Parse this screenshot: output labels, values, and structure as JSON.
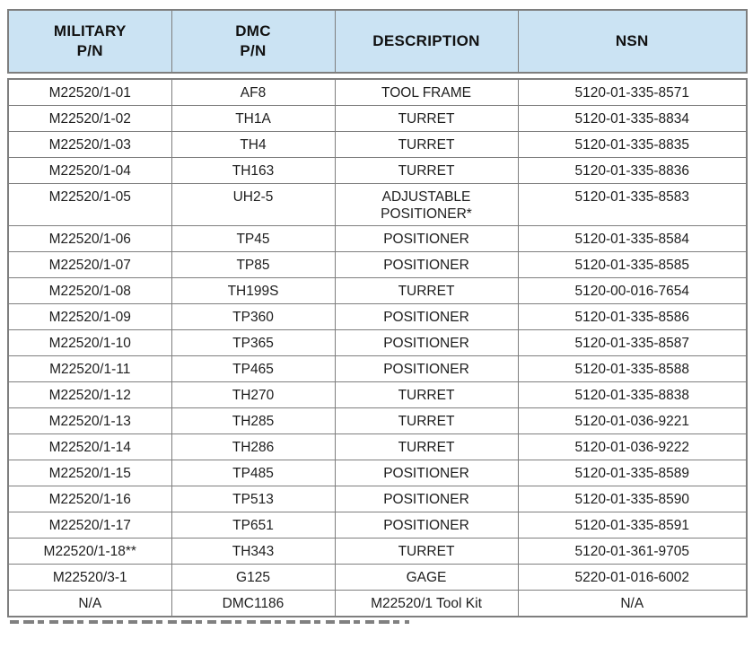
{
  "table": {
    "header": {
      "bg": "#cbe3f3",
      "columns": [
        "MILITARY\nP/N",
        "DMC\nP/N",
        "DESCRIPTION",
        "NSN"
      ]
    },
    "column_keys": [
      "military_pn",
      "dmc_pn",
      "description",
      "nsn"
    ],
    "rows": [
      {
        "military_pn": "M22520/1-01",
        "dmc_pn": "AF8",
        "description": "TOOL FRAME",
        "nsn": "5120-01-335-8571"
      },
      {
        "military_pn": "M22520/1-02",
        "dmc_pn": "TH1A",
        "description": "TURRET",
        "nsn": "5120-01-335-8834"
      },
      {
        "military_pn": "M22520/1-03",
        "dmc_pn": "TH4",
        "description": "TURRET",
        "nsn": "5120-01-335-8835"
      },
      {
        "military_pn": "M22520/1-04",
        "dmc_pn": "TH163",
        "description": "TURRET",
        "nsn": "5120-01-335-8836"
      },
      {
        "military_pn": "M22520/1-05",
        "dmc_pn": "UH2-5",
        "description": "ADJUSTABLE\nPOSITIONER*",
        "nsn": "5120-01-335-8583"
      },
      {
        "military_pn": "M22520/1-06",
        "dmc_pn": "TP45",
        "description": "POSITIONER",
        "nsn": "5120-01-335-8584"
      },
      {
        "military_pn": "M22520/1-07",
        "dmc_pn": "TP85",
        "description": "POSITIONER",
        "nsn": "5120-01-335-8585"
      },
      {
        "military_pn": "M22520/1-08",
        "dmc_pn": "TH199S",
        "description": "TURRET",
        "nsn": "5120-00-016-7654"
      },
      {
        "military_pn": "M22520/1-09",
        "dmc_pn": "TP360",
        "description": "POSITIONER",
        "nsn": "5120-01-335-8586"
      },
      {
        "military_pn": "M22520/1-10",
        "dmc_pn": "TP365",
        "description": "POSITIONER",
        "nsn": "5120-01-335-8587"
      },
      {
        "military_pn": "M22520/1-11",
        "dmc_pn": "TP465",
        "description": "POSITIONER",
        "nsn": "5120-01-335-8588"
      },
      {
        "military_pn": "M22520/1-12",
        "dmc_pn": "TH270",
        "description": "TURRET",
        "nsn": "5120-01-335-8838"
      },
      {
        "military_pn": "M22520/1-13",
        "dmc_pn": "TH285",
        "description": "TURRET",
        "nsn": "5120-01-036-9221"
      },
      {
        "military_pn": "M22520/1-14",
        "dmc_pn": "TH286",
        "description": "TURRET",
        "nsn": "5120-01-036-9222"
      },
      {
        "military_pn": "M22520/1-15",
        "dmc_pn": "TP485",
        "description": "POSITIONER",
        "nsn": "5120-01-335-8589"
      },
      {
        "military_pn": "M22520/1-16",
        "dmc_pn": "TP513",
        "description": "POSITIONER",
        "nsn": "5120-01-335-8590"
      },
      {
        "military_pn": "M22520/1-17",
        "dmc_pn": "TP651",
        "description": "POSITIONER",
        "nsn": "5120-01-335-8591"
      },
      {
        "military_pn": "M22520/1-18**",
        "dmc_pn": "TH343",
        "description": "TURRET",
        "nsn": "5120-01-361-9705"
      },
      {
        "military_pn": "M22520/3-1",
        "dmc_pn": "G125",
        "description": "GAGE",
        "nsn": "5220-01-016-6002"
      },
      {
        "military_pn": "N/A",
        "dmc_pn": "DMC1186",
        "description": "M22520/1 Tool Kit",
        "nsn": "N/A"
      }
    ]
  }
}
